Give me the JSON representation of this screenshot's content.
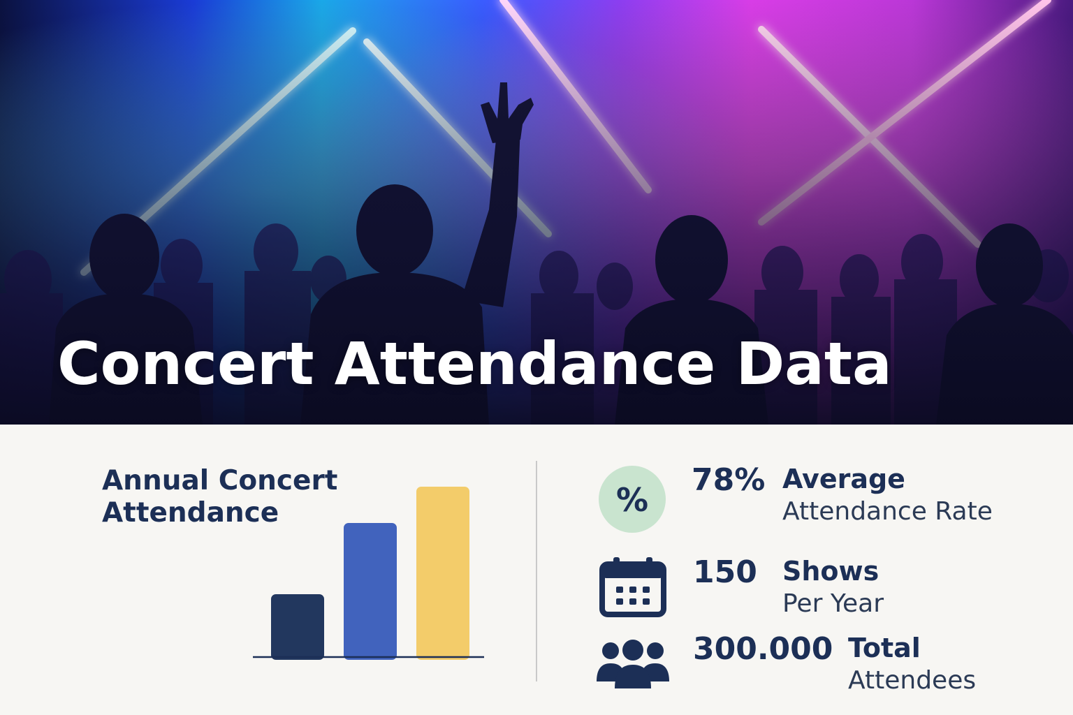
{
  "hero": {
    "title": "Concert Attendance Data"
  },
  "chart_data": {
    "type": "bar",
    "title": "Annual Concert Attendance",
    "categories": [
      "",
      "",
      ""
    ],
    "values": [
      90,
      192,
      244
    ],
    "colors": [
      "#22375e",
      "#4163bd",
      "#f3cc6a"
    ],
    "ylim": [
      0,
      260
    ],
    "xlabel": "",
    "ylabel": "",
    "grid": false
  },
  "stats": [
    {
      "icon": "percent-icon",
      "value": "78%",
      "label_bold": "Average",
      "label": "Attendance Rate"
    },
    {
      "icon": "calendar-icon",
      "value": "150",
      "label_bold": "Shows",
      "label": "Per Year"
    },
    {
      "icon": "people-group-icon",
      "value": "300.000",
      "label_bold": "Total",
      "label": "Attendees"
    }
  ],
  "colors": {
    "navy": "#1c2f56",
    "percent_badge": "#c9e4cf",
    "panel_bg": "#f7f6f3"
  }
}
